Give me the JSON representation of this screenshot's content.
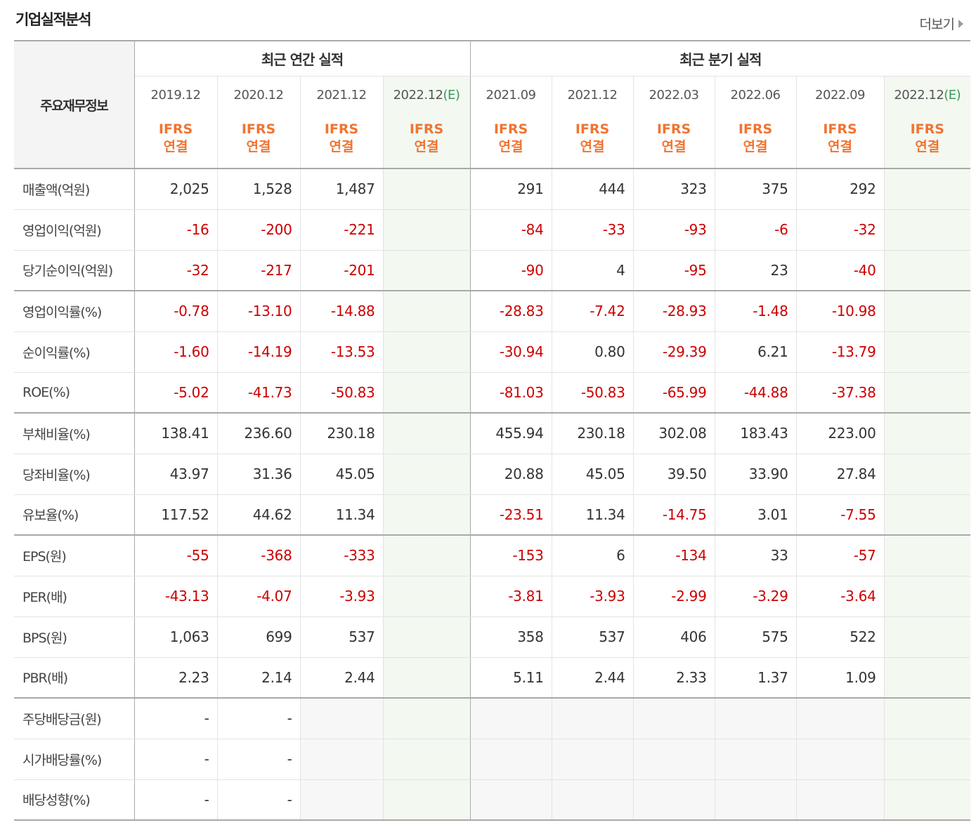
{
  "title": "기업실적분석",
  "more_label": "더보기",
  "colors": {
    "negative": "#cc0000",
    "standard": "#f07432",
    "estimate_bg": "#f3f8f1",
    "estimate_text": "#3a9a5b"
  },
  "table": {
    "corner_label": "주요재무정보",
    "group_annual": "최근 연간 실적",
    "group_quarter": "최근 분기 실적",
    "periods": [
      {
        "date": "2019.12",
        "est": ""
      },
      {
        "date": "2020.12",
        "est": ""
      },
      {
        "date": "2021.12",
        "est": ""
      },
      {
        "date": "2022.12",
        "est": "(E)"
      },
      {
        "date": "2021.09",
        "est": ""
      },
      {
        "date": "2021.12",
        "est": ""
      },
      {
        "date": "2022.03",
        "est": ""
      },
      {
        "date": "2022.06",
        "est": ""
      },
      {
        "date": "2022.09",
        "est": ""
      },
      {
        "date": "2022.12",
        "est": "(E)"
      }
    ],
    "standard_line1": "IFRS",
    "standard_line2": "연결",
    "rows": [
      {
        "label": "매출액(억원)",
        "values": [
          "2,025",
          "1,528",
          "1,487",
          "",
          "291",
          "444",
          "323",
          "375",
          "292",
          ""
        ]
      },
      {
        "label": "영업이익(억원)",
        "values": [
          "-16",
          "-200",
          "-221",
          "",
          "-84",
          "-33",
          "-93",
          "-6",
          "-32",
          ""
        ]
      },
      {
        "label": "당기순이익(억원)",
        "values": [
          "-32",
          "-217",
          "-201",
          "",
          "-90",
          "4",
          "-95",
          "23",
          "-40",
          ""
        ]
      },
      {
        "label": "영업이익률(%)",
        "values": [
          "-0.78",
          "-13.10",
          "-14.88",
          "",
          "-28.83",
          "-7.42",
          "-28.93",
          "-1.48",
          "-10.98",
          ""
        ]
      },
      {
        "label": "순이익률(%)",
        "values": [
          "-1.60",
          "-14.19",
          "-13.53",
          "",
          "-30.94",
          "0.80",
          "-29.39",
          "6.21",
          "-13.79",
          ""
        ]
      },
      {
        "label": "ROE(%)",
        "values": [
          "-5.02",
          "-41.73",
          "-50.83",
          "",
          "-81.03",
          "-50.83",
          "-65.99",
          "-44.88",
          "-37.38",
          ""
        ]
      },
      {
        "label": "부채비율(%)",
        "values": [
          "138.41",
          "236.60",
          "230.18",
          "",
          "455.94",
          "230.18",
          "302.08",
          "183.43",
          "223.00",
          ""
        ]
      },
      {
        "label": "당좌비율(%)",
        "values": [
          "43.97",
          "31.36",
          "45.05",
          "",
          "20.88",
          "45.05",
          "39.50",
          "33.90",
          "27.84",
          ""
        ]
      },
      {
        "label": "유보율(%)",
        "values": [
          "117.52",
          "44.62",
          "11.34",
          "",
          "-23.51",
          "11.34",
          "-14.75",
          "3.01",
          "-7.55",
          ""
        ]
      },
      {
        "label": "EPS(원)",
        "values": [
          "-55",
          "-368",
          "-333",
          "",
          "-153",
          "6",
          "-134",
          "33",
          "-57",
          ""
        ]
      },
      {
        "label": "PER(배)",
        "values": [
          "-43.13",
          "-4.07",
          "-3.93",
          "",
          "-3.81",
          "-3.93",
          "-2.99",
          "-3.29",
          "-3.64",
          ""
        ]
      },
      {
        "label": "BPS(원)",
        "values": [
          "1,063",
          "699",
          "537",
          "",
          "358",
          "537",
          "406",
          "575",
          "522",
          ""
        ]
      },
      {
        "label": "PBR(배)",
        "values": [
          "2.23",
          "2.14",
          "2.44",
          "",
          "5.11",
          "2.44",
          "2.33",
          "1.37",
          "1.09",
          ""
        ]
      },
      {
        "label": "주당배당금(원)",
        "values": [
          "-",
          "-",
          "",
          "",
          "",
          "",
          "",
          "",
          "",
          ""
        ]
      },
      {
        "label": "시가배당률(%)",
        "values": [
          "-",
          "-",
          "",
          "",
          "",
          "",
          "",
          "",
          "",
          ""
        ]
      },
      {
        "label": "배당성향(%)",
        "values": [
          "-",
          "-",
          "",
          "",
          "",
          "",
          "",
          "",
          "",
          ""
        ]
      }
    ]
  }
}
